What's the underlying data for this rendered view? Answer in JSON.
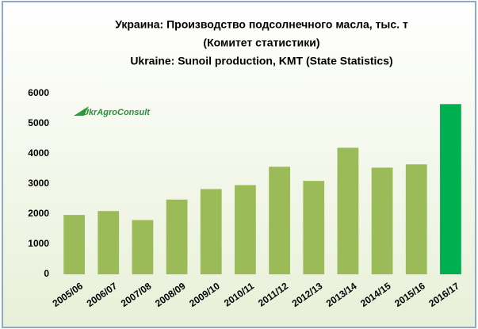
{
  "chart_data": {
    "type": "bar",
    "title_lines": [
      "Украина: Производство подсолнечного масла, тыс. т",
      "(Комитет статистики)",
      "Ukraine: Sunoil production, KMT (State Statistics)"
    ],
    "logo": "UkrAgroConsult",
    "categories": [
      "2005/06",
      "2006/07",
      "2007/08",
      "2008/09",
      "2009/10",
      "2010/11",
      "2011/12",
      "2012/13",
      "2013/14",
      "2014/15",
      "2015/16",
      "2016/17"
    ],
    "values": [
      1970,
      2100,
      1800,
      2480,
      2830,
      2960,
      3570,
      3100,
      4200,
      3540,
      3650,
      5650
    ],
    "colors": [
      "#9bbb59",
      "#9bbb59",
      "#9bbb59",
      "#9bbb59",
      "#9bbb59",
      "#9bbb59",
      "#9bbb59",
      "#9bbb59",
      "#9bbb59",
      "#9bbb59",
      "#9bbb59",
      "#00b050"
    ],
    "ylim": [
      0,
      6000
    ],
    "yticks": [
      0,
      1000,
      2000,
      3000,
      4000,
      5000,
      6000
    ],
    "grid": false
  }
}
